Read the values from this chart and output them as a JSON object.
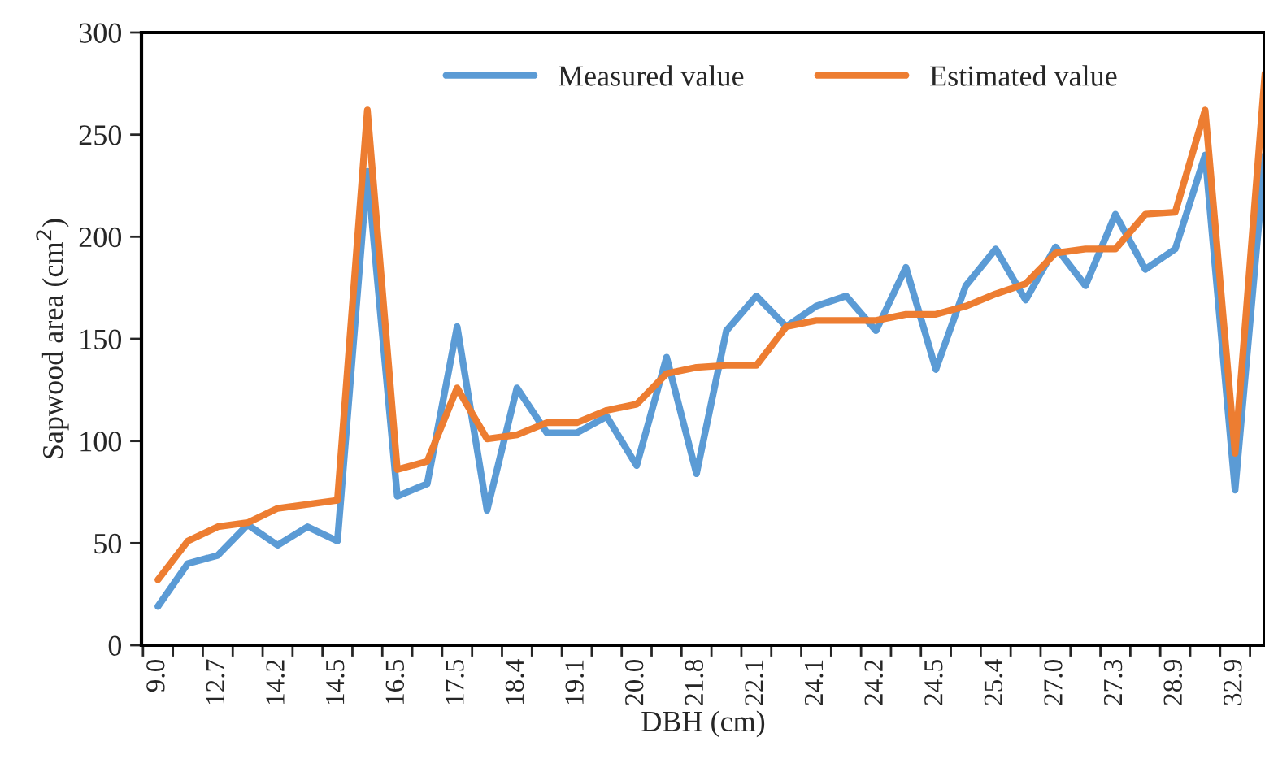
{
  "chart_data": {
    "type": "line",
    "xlabel": "DBH (cm)",
    "ylabel": "Sapwood area (cm$^{2}$)",
    "categories": [
      "9.0",
      null,
      "12.7",
      null,
      "14.2",
      null,
      "14.5",
      null,
      "16.5",
      null,
      "17.5",
      null,
      "18.4",
      null,
      "19.1",
      null,
      "20.0",
      null,
      "21.8",
      null,
      "22.1",
      null,
      "24.1",
      null,
      "24.2",
      null,
      "24.5",
      null,
      "25.4",
      null,
      "27.0",
      null,
      "27.3",
      null,
      "28.9",
      null,
      "32.9",
      null
    ],
    "series": [
      {
        "name": "Measured value",
        "color": "#5b9bd5",
        "values": [
          19,
          40,
          44,
          59,
          49,
          58,
          51,
          232,
          73,
          79,
          156,
          66,
          126,
          104,
          104,
          112,
          88,
          141,
          84,
          154,
          171,
          156,
          166,
          171,
          154,
          185,
          135,
          176,
          194,
          169,
          195,
          176,
          211,
          184,
          194,
          240,
          76,
          240
        ]
      },
      {
        "name": "Estimated value",
        "color": "#ed7d31",
        "values": [
          32,
          51,
          58,
          60,
          67,
          69,
          71,
          262,
          86,
          90,
          126,
          101,
          103,
          109,
          109,
          115,
          118,
          133,
          136,
          137,
          137,
          156,
          159,
          159,
          159,
          162,
          162,
          166,
          172,
          177,
          192,
          194,
          194,
          211,
          212,
          262,
          94,
          280
        ]
      }
    ],
    "ylim": [
      0,
      300
    ],
    "yticks": [
      0,
      50,
      100,
      150,
      200,
      250,
      300
    ],
    "grid": false,
    "legend": "top",
    "marker": "none",
    "line_style": "solid"
  }
}
